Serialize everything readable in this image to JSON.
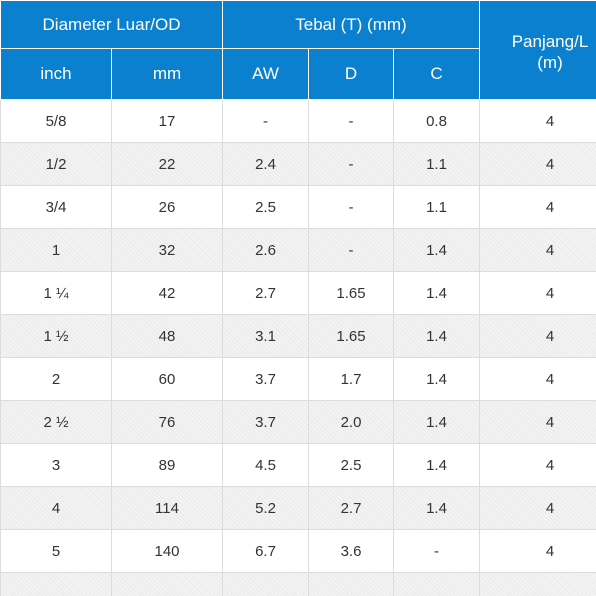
{
  "table": {
    "headers": {
      "diameter": "Diameter Luar/OD",
      "tebal": "Tebal (T) (mm)",
      "panjang_line1": "Panjang/L",
      "panjang_line2": "(m)",
      "inch": "inch",
      "mm": "mm",
      "aw": "AW",
      "d": "D",
      "c": "C"
    },
    "rows": [
      {
        "inch": "5/8",
        "mm": "17",
        "aw": "-",
        "d": "-",
        "c": "0.8",
        "panjang": "4"
      },
      {
        "inch": "1/2",
        "mm": "22",
        "aw": "2.4",
        "d": "-",
        "c": "1.1",
        "panjang": "4"
      },
      {
        "inch": "3/4",
        "mm": "26",
        "aw": "2.5",
        "d": "-",
        "c": "1.1",
        "panjang": "4"
      },
      {
        "inch": "1",
        "mm": "32",
        "aw": "2.6",
        "d": "-",
        "c": "1.4",
        "panjang": "4"
      },
      {
        "inch": "1 ¼",
        "mm": "42",
        "aw": "2.7",
        "d": "1.65",
        "c": "1.4",
        "panjang": "4"
      },
      {
        "inch": "1 ½",
        "mm": "48",
        "aw": "3.1",
        "d": "1.65",
        "c": "1.4",
        "panjang": "4"
      },
      {
        "inch": "2",
        "mm": "60",
        "aw": "3.7",
        "d": "1.7",
        "c": "1.4",
        "panjang": "4"
      },
      {
        "inch": "2 ½",
        "mm": "76",
        "aw": "3.7",
        "d": "2.0",
        "c": "1.4",
        "panjang": "4"
      },
      {
        "inch": "3",
        "mm": "89",
        "aw": "4.5",
        "d": "2.5",
        "c": "1.4",
        "panjang": "4"
      },
      {
        "inch": "4",
        "mm": "114",
        "aw": "5.2",
        "d": "2.7",
        "c": "1.4",
        "panjang": "4"
      },
      {
        "inch": "5",
        "mm": "140",
        "aw": "6.7",
        "d": "3.6",
        "c": "-",
        "panjang": "4"
      },
      {
        "inch": "",
        "mm": "",
        "aw": "",
        "d": "",
        "c": "",
        "panjang": ""
      }
    ],
    "colors": {
      "header_bg": "#0a80cf",
      "header_text": "#ffffff",
      "stripe": "#f3f3f3",
      "border": "#dcdcdc"
    }
  }
}
